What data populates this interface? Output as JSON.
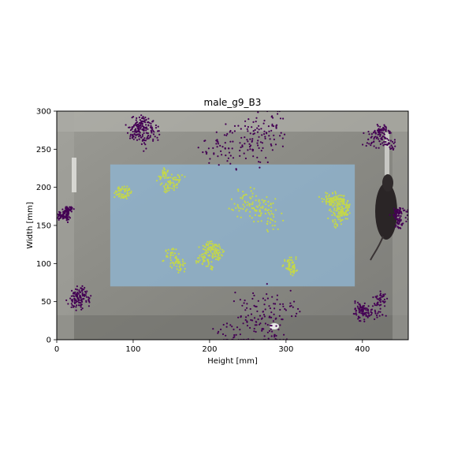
{
  "chart_data": {
    "type": "scatter",
    "title": "male_g9_B3",
    "xlabel": "Height [mm]",
    "ylabel": "Width [mm]",
    "xlim": [
      0,
      460
    ],
    "ylim": [
      0,
      300
    ],
    "xticks": [
      0,
      100,
      200,
      300,
      400
    ],
    "yticks": [
      0,
      50,
      100,
      150,
      200,
      250,
      300
    ],
    "grid": false,
    "background": "photo of arena floor with a mouse near the right edge",
    "regions": [
      {
        "name": "center",
        "x": [
          70,
          390
        ],
        "y": [
          70,
          230
        ],
        "color": "#8fb3cc"
      }
    ],
    "series": [
      {
        "color": "#440154",
        "marker": "dot",
        "clusters": [
          {
            "cx": 110,
            "cy": 270,
            "r": 25,
            "n": 180
          },
          {
            "cx": 30,
            "cy": 55,
            "r": 18,
            "n": 120
          },
          {
            "cx": 410,
            "cy": 45,
            "r": 25,
            "n": 140
          },
          {
            "cx": 420,
            "cy": 260,
            "r": 25,
            "n": 120
          },
          {
            "cx": 240,
            "cy": 275,
            "r": 60,
            "n": 160
          },
          {
            "cx": 260,
            "cy": 30,
            "r": 60,
            "n": 160
          },
          {
            "cx": 15,
            "cy": 160,
            "r": 15,
            "n": 120
          },
          {
            "cx": 450,
            "cy": 160,
            "r": 15,
            "n": 90
          }
        ]
      },
      {
        "color": "#c4d74a",
        "marker": "dot",
        "clusters": [
          {
            "cx": 360,
            "cy": 170,
            "r": 25,
            "n": 220
          },
          {
            "cx": 200,
            "cy": 110,
            "r": 20,
            "n": 140
          },
          {
            "cx": 150,
            "cy": 210,
            "r": 20,
            "n": 90
          },
          {
            "cx": 90,
            "cy": 190,
            "r": 15,
            "n": 60
          },
          {
            "cx": 310,
            "cy": 90,
            "r": 20,
            "n": 60
          },
          {
            "cx": 260,
            "cy": 170,
            "r": 40,
            "n": 120
          },
          {
            "cx": 150,
            "cy": 100,
            "r": 20,
            "n": 70
          }
        ]
      }
    ]
  }
}
